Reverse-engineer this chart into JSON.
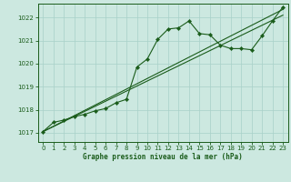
{
  "title": "Graphe pression niveau de la mer (hPa)",
  "bg_color": "#cce8e0",
  "plot_bg_color": "#cce8e0",
  "grid_color": "#a8d0c8",
  "line_color": "#1a5c1a",
  "xlim": [
    -0.5,
    23.5
  ],
  "ylim": [
    1016.6,
    1022.6
  ],
  "yticks": [
    1017,
    1018,
    1019,
    1020,
    1021,
    1022
  ],
  "xticks": [
    0,
    1,
    2,
    3,
    4,
    5,
    6,
    7,
    8,
    9,
    10,
    11,
    12,
    13,
    14,
    15,
    16,
    17,
    18,
    19,
    20,
    21,
    22,
    23
  ],
  "main_series": [
    1017.05,
    1017.45,
    1017.55,
    1017.7,
    1017.8,
    1017.95,
    1018.05,
    1018.3,
    1018.45,
    1019.85,
    1020.2,
    1021.05,
    1021.5,
    1021.55,
    1021.85,
    1021.3,
    1021.25,
    1020.8,
    1020.65,
    1020.65,
    1020.6,
    1021.2,
    1021.85,
    1022.45
  ],
  "trend1_x": [
    0,
    23
  ],
  "trend1_y": [
    1017.05,
    1022.35
  ],
  "trend2_x": [
    0,
    23
  ],
  "trend2_y": [
    1017.05,
    1022.1
  ]
}
